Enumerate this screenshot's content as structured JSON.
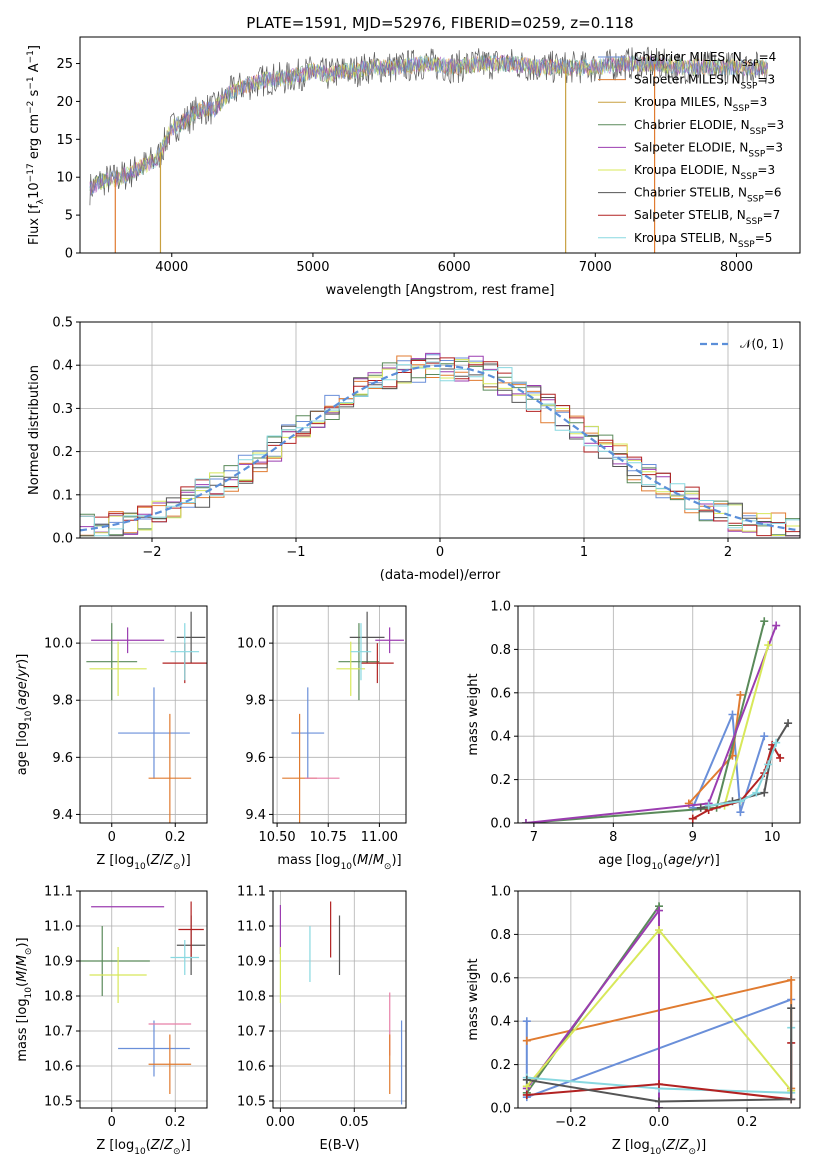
{
  "title": "PLATE=1591, MJD=52976, FIBERID=0259, z=0.118",
  "colors": {
    "Chabrier MILES": "#6a8fd9",
    "Salpeter MILES": "#e07b30",
    "Kroupa MILES": "#c8a040",
    "Chabrier ELODIE": "#5a8a5a",
    "Salpeter ELODIE": "#9b3db0",
    "Kroupa ELODIE": "#d8e85a",
    "Chabrier STELIB": "#555555",
    "Salpeter STELIB": "#b22222",
    "Kroupa STELIB": "#88d8e0",
    "pink": "#e87fa8"
  },
  "chart_data": [
    {
      "id": "spectrum",
      "type": "line",
      "xlabel": "wavelength [Angstrom, rest frame]",
      "ylabel": "Flux [f_λ10^-17 erg cm^-2 s^-1 A^-1]",
      "xlim": [
        3350,
        8450
      ],
      "ylim": [
        0,
        28.5
      ],
      "xticks": [
        4000,
        5000,
        6000,
        7000,
        8000
      ],
      "yticks": [
        0,
        5,
        10,
        15,
        20,
        25
      ],
      "legend_position": "right",
      "legend": [
        {
          "label": "Chabrier MILES, N_SSP=4",
          "color_key": "Chabrier MILES",
          "text": "Chabrier MILES, N",
          "sub": "SSP",
          "tail": "=4"
        },
        {
          "label": "Salpeter MILES, N_SSP=3",
          "color_key": "Salpeter MILES",
          "text": "Salpeter MILES, N",
          "sub": "SSP",
          "tail": "=3"
        },
        {
          "label": "Kroupa MILES, N_SSP=3",
          "color_key": "Kroupa MILES",
          "text": "Kroupa MILES, N",
          "sub": "SSP",
          "tail": "=3"
        },
        {
          "label": "Chabrier ELODIE, N_SSP=3",
          "color_key": "Chabrier ELODIE",
          "text": "Chabrier ELODIE, N",
          "sub": "SSP",
          "tail": "=3"
        },
        {
          "label": "Salpeter ELODIE, N_SSP=3",
          "color_key": "Salpeter ELODIE",
          "text": "Salpeter ELODIE, N",
          "sub": "SSP",
          "tail": "=3"
        },
        {
          "label": "Kroupa ELODIE, N_SSP=3",
          "color_key": "Kroupa ELODIE",
          "text": "Kroupa ELODIE, N",
          "sub": "SSP",
          "tail": "=3"
        },
        {
          "label": "Chabrier STELIB, N_SSP=6",
          "color_key": "Chabrier STELIB",
          "text": "Chabrier STELIB, N",
          "sub": "SSP",
          "tail": "=6"
        },
        {
          "label": "Salpeter STELIB, N_SSP=7",
          "color_key": "Salpeter STELIB",
          "text": "Salpeter STELIB, N",
          "sub": "SSP",
          "tail": "=7"
        },
        {
          "label": "Kroupa STELIB, N_SSP=5",
          "color_key": "Kroupa STELIB",
          "text": "Kroupa STELIB, N",
          "sub": "SSP",
          "tail": "=5"
        }
      ],
      "continuum": [
        [
          3420,
          8.5
        ],
        [
          3500,
          9.5
        ],
        [
          3600,
          9.8
        ],
        [
          3700,
          10.5
        ],
        [
          3800,
          11.5
        ],
        [
          3900,
          12.5
        ],
        [
          4000,
          16.5
        ],
        [
          4100,
          17.5
        ],
        [
          4200,
          19
        ],
        [
          4300,
          19
        ],
        [
          4400,
          21
        ],
        [
          4500,
          22
        ],
        [
          4600,
          22.5
        ],
        [
          4700,
          23
        ],
        [
          4800,
          23
        ],
        [
          4900,
          23.5
        ],
        [
          5000,
          24
        ],
        [
          5100,
          23.5
        ],
        [
          5200,
          24
        ],
        [
          5300,
          24
        ],
        [
          5400,
          24.5
        ],
        [
          5500,
          24.5
        ],
        [
          5600,
          24.5
        ],
        [
          5800,
          25
        ],
        [
          6000,
          24.5
        ],
        [
          6200,
          25
        ],
        [
          6400,
          25
        ],
        [
          6600,
          24.5
        ],
        [
          6800,
          24.5
        ],
        [
          7000,
          24.5
        ],
        [
          7200,
          25
        ],
        [
          7400,
          25
        ],
        [
          7600,
          24.5
        ],
        [
          7800,
          24.5
        ],
        [
          8000,
          24.5
        ],
        [
          8200,
          24.5
        ]
      ],
      "spectrum_range": [
        3420,
        8220
      ],
      "dips": [
        {
          "x": 3920,
          "to": 0,
          "color_key": "Kroupa MILES"
        },
        {
          "x": 6790,
          "to": 0,
          "color_key": "Kroupa MILES"
        },
        {
          "x": 7420,
          "to": 0,
          "color_key": "Salpeter MILES"
        },
        {
          "x": 3600,
          "to": 0,
          "color_key": "Salpeter MILES"
        }
      ]
    },
    {
      "id": "residuals",
      "type": "line",
      "xlabel": "(data-model)/error",
      "ylabel": "Normed distribution",
      "xlim": [
        -2.5,
        2.5
      ],
      "ylim": [
        0,
        0.5
      ],
      "xticks": [
        -2,
        -1,
        0,
        1,
        2
      ],
      "yticks": [
        0.0,
        0.1,
        0.2,
        0.3,
        0.4,
        0.5
      ],
      "grid": true,
      "legend_position": "top-right",
      "legend": [
        {
          "label": "𝒩(0, 1)",
          "color": "#5b8fd9",
          "style": "dashed"
        }
      ],
      "bin_width": 0.1
    },
    {
      "id": "age_vs_Z",
      "type": "scatter",
      "xlabel": "Z [log10(Z/Z⊙)]",
      "ylabel": "age  [log10(age/yr)]",
      "xlim": [
        -0.1,
        0.3
      ],
      "ylim": [
        9.37,
        10.13
      ],
      "xticks": [
        0.0,
        0.2
      ],
      "yticks": [
        9.4,
        9.6,
        9.8,
        10.0
      ],
      "grid": true,
      "points": [
        {
          "x": 0.133,
          "y": 9.685,
          "xerr": 0.113,
          "yerr": 0.16,
          "color_key": "Chabrier MILES"
        },
        {
          "x": 0.183,
          "y": 9.527,
          "xerr": 0.067,
          "yerr": 0.225,
          "color_key": "Salpeter MILES"
        },
        {
          "x": 0.0,
          "y": 9.935,
          "xerr": 0.08,
          "yerr": 0.135,
          "color_key": "Chabrier ELODIE"
        },
        {
          "x": 0.05,
          "y": 10.01,
          "xerr": 0.115,
          "yerr": 0.045,
          "color_key": "Salpeter ELODIE"
        },
        {
          "x": 0.02,
          "y": 9.91,
          "xerr": 0.09,
          "yerr": 0.095,
          "color_key": "Kroupa ELODIE"
        },
        {
          "x": 0.25,
          "y": 10.02,
          "xerr": 0.045,
          "yerr": 0.09,
          "color_key": "Chabrier STELIB"
        },
        {
          "x": 0.23,
          "y": 9.93,
          "xerr": 0.07,
          "yerr": 0.07,
          "color_key": "Salpeter STELIB"
        },
        {
          "x": 0.23,
          "y": 9.97,
          "xerr": 0.045,
          "yerr": 0.1,
          "color_key": "Kroupa STELIB"
        }
      ]
    },
    {
      "id": "age_vs_mass",
      "type": "scatter",
      "xlabel": "mass [log10(M/M⊙)]",
      "xlim": [
        10.48,
        11.13
      ],
      "ylim": [
        9.37,
        10.13
      ],
      "xticks": [
        10.5,
        10.75,
        11.0
      ],
      "xtick_labels": [
        "10.50",
        "10.75",
        "11.00"
      ],
      "yticks": [
        9.4,
        9.6,
        9.8,
        10.0
      ],
      "grid": true,
      "points": [
        {
          "x": 10.65,
          "y": 9.685,
          "xerr": 0.08,
          "yerr": 0.16,
          "color_key": "Chabrier MILES"
        },
        {
          "x": 10.61,
          "y": 9.527,
          "xerr": 0.085,
          "yerr": 0.225,
          "color_key": "Salpeter MILES"
        },
        {
          "x": 10.72,
          "y": 9.527,
          "xerr": 0.085,
          "yerr": 0.0,
          "color_key": "pink"
        },
        {
          "x": 10.9,
          "y": 9.935,
          "xerr": 0.1,
          "yerr": 0.135,
          "color_key": "Chabrier ELODIE"
        },
        {
          "x": 11.05,
          "y": 10.01,
          "xerr": 0.07,
          "yerr": 0.045,
          "color_key": "Salpeter ELODIE"
        },
        {
          "x": 10.86,
          "y": 9.91,
          "xerr": 0.07,
          "yerr": 0.095,
          "color_key": "Kroupa ELODIE"
        },
        {
          "x": 10.94,
          "y": 10.02,
          "xerr": 0.085,
          "yerr": 0.09,
          "color_key": "Chabrier STELIB"
        },
        {
          "x": 10.99,
          "y": 9.93,
          "xerr": 0.08,
          "yerr": 0.07,
          "color_key": "Salpeter STELIB"
        },
        {
          "x": 10.91,
          "y": 9.97,
          "xerr": 0.05,
          "yerr": 0.1,
          "color_key": "Kroupa STELIB"
        }
      ]
    },
    {
      "id": "weight_vs_age",
      "type": "line",
      "xlabel": "age  [log10(age/yr)]",
      "ylabel": "mass weight",
      "xlim": [
        6.8,
        10.35
      ],
      "ylim": [
        0,
        1.0
      ],
      "xticks": [
        7,
        8,
        9,
        10
      ],
      "yticks": [
        0.0,
        0.2,
        0.4,
        0.6,
        0.8,
        1.0
      ],
      "grid": true,
      "series": [
        {
          "color_key": "Chabrier MILES",
          "points": [
            [
              9.0,
              0.07
            ],
            [
              9.5,
              0.5
            ],
            [
              9.6,
              0.05
            ],
            [
              9.9,
              0.4
            ]
          ]
        },
        {
          "color_key": "Salpeter MILES",
          "points": [
            [
              8.95,
              0.09
            ],
            [
              9.5,
              0.31
            ],
            [
              9.6,
              0.59
            ]
          ]
        },
        {
          "color_key": "Chabrier ELODIE",
          "points": [
            [
              6.9,
              0.0
            ],
            [
              9.3,
              0.07
            ],
            [
              9.9,
              0.93
            ]
          ]
        },
        {
          "color_key": "Salpeter ELODIE",
          "points": [
            [
              6.9,
              0.0
            ],
            [
              9.2,
              0.09
            ],
            [
              10.05,
              0.91
            ]
          ]
        },
        {
          "color_key": "Kroupa ELODIE",
          "points": [
            [
              9.4,
              0.08
            ],
            [
              9.95,
              0.82
            ]
          ]
        },
        {
          "color_key": "Chabrier STELIB",
          "points": [
            [
              9.1,
              0.07
            ],
            [
              9.5,
              0.1
            ],
            [
              9.9,
              0.14
            ],
            [
              10.0,
              0.34
            ],
            [
              10.2,
              0.46
            ]
          ]
        },
        {
          "color_key": "Salpeter STELIB",
          "points": [
            [
              9.0,
              0.02
            ],
            [
              9.2,
              0.06
            ],
            [
              9.6,
              0.1
            ],
            [
              9.9,
              0.23
            ],
            [
              10.0,
              0.36
            ],
            [
              10.1,
              0.3
            ]
          ]
        },
        {
          "color_key": "Kroupa STELIB",
          "points": [
            [
              9.2,
              0.08
            ],
            [
              9.6,
              0.1
            ],
            [
              9.8,
              0.14
            ],
            [
              9.95,
              0.27
            ],
            [
              10.05,
              0.37
            ]
          ]
        }
      ]
    },
    {
      "id": "mass_vs_Z",
      "type": "scatter",
      "xlabel": "Z [log10(Z/Z⊙)]",
      "ylabel": "mass [log10(M/M⊙)]",
      "xlim": [
        -0.1,
        0.3
      ],
      "ylim": [
        10.48,
        11.1
      ],
      "xticks": [
        0.0,
        0.2
      ],
      "yticks": [
        10.5,
        10.6,
        10.7,
        10.8,
        10.9,
        11.0,
        11.1
      ],
      "grid": true,
      "points": [
        {
          "x": 0.133,
          "y": 10.65,
          "xerr": 0.113,
          "yerr": 0.08,
          "color_key": "Chabrier MILES"
        },
        {
          "x": 0.183,
          "y": 10.605,
          "xerr": 0.067,
          "yerr": 0.085,
          "color_key": "Salpeter MILES"
        },
        {
          "x": 0.183,
          "y": 10.72,
          "xerr": 0.067,
          "yerr": 0.0,
          "color_key": "pink"
        },
        {
          "x": -0.03,
          "y": 10.9,
          "xerr": 0.15,
          "yerr": 0.1,
          "color_key": "Chabrier ELODIE"
        },
        {
          "x": 0.05,
          "y": 11.055,
          "xerr": 0.115,
          "yerr": 0.0,
          "color_key": "Salpeter ELODIE"
        },
        {
          "x": 0.02,
          "y": 10.86,
          "xerr": 0.09,
          "yerr": 0.08,
          "color_key": "Kroupa ELODIE"
        },
        {
          "x": 0.25,
          "y": 10.945,
          "xerr": 0.045,
          "yerr": 0.085,
          "color_key": "Chabrier STELIB"
        },
        {
          "x": 0.25,
          "y": 10.99,
          "xerr": 0.04,
          "yerr": 0.08,
          "color_key": "Salpeter STELIB"
        },
        {
          "x": 0.23,
          "y": 10.91,
          "xerr": 0.045,
          "yerr": 0.05,
          "color_key": "Kroupa STELIB"
        }
      ]
    },
    {
      "id": "mass_vs_EBV",
      "type": "scatter",
      "xlabel": "E(B-V)",
      "xlim": [
        -0.005,
        0.085
      ],
      "ylim": [
        10.48,
        11.1
      ],
      "xticks": [
        0.0,
        0.05
      ],
      "xtick_labels": [
        "0.00",
        "0.05"
      ],
      "yticks": [
        10.5,
        10.6,
        10.7,
        10.8,
        10.9,
        11.0,
        11.1
      ],
      "grid": true,
      "points": [
        {
          "x": 0.0,
          "y": 10.99,
          "xerr": 0,
          "yerr": 0.07,
          "color_key": "Salpeter ELODIE"
        },
        {
          "x": 0.0,
          "y": 10.86,
          "xerr": 0,
          "yerr": 0.08,
          "color_key": "Kroupa ELODIE"
        },
        {
          "x": 0.02,
          "y": 10.92,
          "xerr": 0,
          "yerr": 0.08,
          "color_key": "Kroupa STELIB"
        },
        {
          "x": 0.034,
          "y": 10.99,
          "xerr": 0,
          "yerr": 0.08,
          "color_key": "Salpeter STELIB"
        },
        {
          "x": 0.04,
          "y": 10.945,
          "xerr": 0,
          "yerr": 0.085,
          "color_key": "Chabrier STELIB"
        },
        {
          "x": 0.074,
          "y": 10.72,
          "xerr": 0,
          "yerr": 0.09,
          "color_key": "pink"
        },
        {
          "x": 0.074,
          "y": 10.605,
          "xerr": 0,
          "yerr": 0.085,
          "color_key": "Salpeter MILES"
        },
        {
          "x": 0.082,
          "y": 10.61,
          "xerr": 0,
          "yerr": 0.12,
          "color_key": "Chabrier MILES"
        }
      ]
    },
    {
      "id": "weight_vs_Z",
      "type": "line",
      "xlabel": "Z [log10(Z/Z⊙)]",
      "ylabel": "mass weight",
      "xlim": [
        -0.32,
        0.32
      ],
      "ylim": [
        0,
        1.0
      ],
      "xticks": [
        -0.2,
        0.0,
        0.2
      ],
      "xtick_labels": [
        "−0.2",
        "0.0",
        "0.2"
      ],
      "yticks": [
        0.0,
        0.2,
        0.4,
        0.6,
        0.8,
        1.0
      ],
      "grid": true,
      "series": [
        {
          "color_key": "Chabrier MILES",
          "points": [
            [
              -0.3,
              0.4
            ],
            [
              -0.3,
              0.05
            ],
            [
              0.3,
              0.5
            ]
          ]
        },
        {
          "color_key": "Salpeter MILES",
          "points": [
            [
              -0.3,
              0.31
            ],
            [
              0.3,
              0.59
            ],
            [
              0.3,
              0.09
            ]
          ]
        },
        {
          "color_key": "Chabrier ELODIE",
          "points": [
            [
              -0.3,
              0.07
            ],
            [
              0.0,
              0.93
            ],
            [
              0.0,
              0.0
            ]
          ]
        },
        {
          "color_key": "Salpeter ELODIE",
          "points": [
            [
              -0.3,
              0.09
            ],
            [
              0.0,
              0.91
            ],
            [
              0.0,
              0.0
            ]
          ]
        },
        {
          "color_key": "Kroupa ELODIE",
          "points": [
            [
              -0.3,
              0.1
            ],
            [
              0.0,
              0.82
            ],
            [
              0.3,
              0.08
            ]
          ]
        },
        {
          "color_key": "Kroupa STELIB",
          "points": [
            [
              -0.3,
              0.14
            ],
            [
              0.0,
              0.09
            ],
            [
              0.3,
              0.07
            ],
            [
              0.3,
              0.37
            ]
          ]
        },
        {
          "color_key": "Salpeter STELIB",
          "points": [
            [
              -0.3,
              0.06
            ],
            [
              0.0,
              0.11
            ],
            [
              0.3,
              0.04
            ],
            [
              0.3,
              0.3
            ]
          ]
        },
        {
          "color_key": "Chabrier STELIB",
          "points": [
            [
              -0.3,
              0.13
            ],
            [
              0.0,
              0.03
            ],
            [
              0.3,
              0.04
            ],
            [
              0.3,
              0.46
            ]
          ]
        }
      ]
    }
  ]
}
